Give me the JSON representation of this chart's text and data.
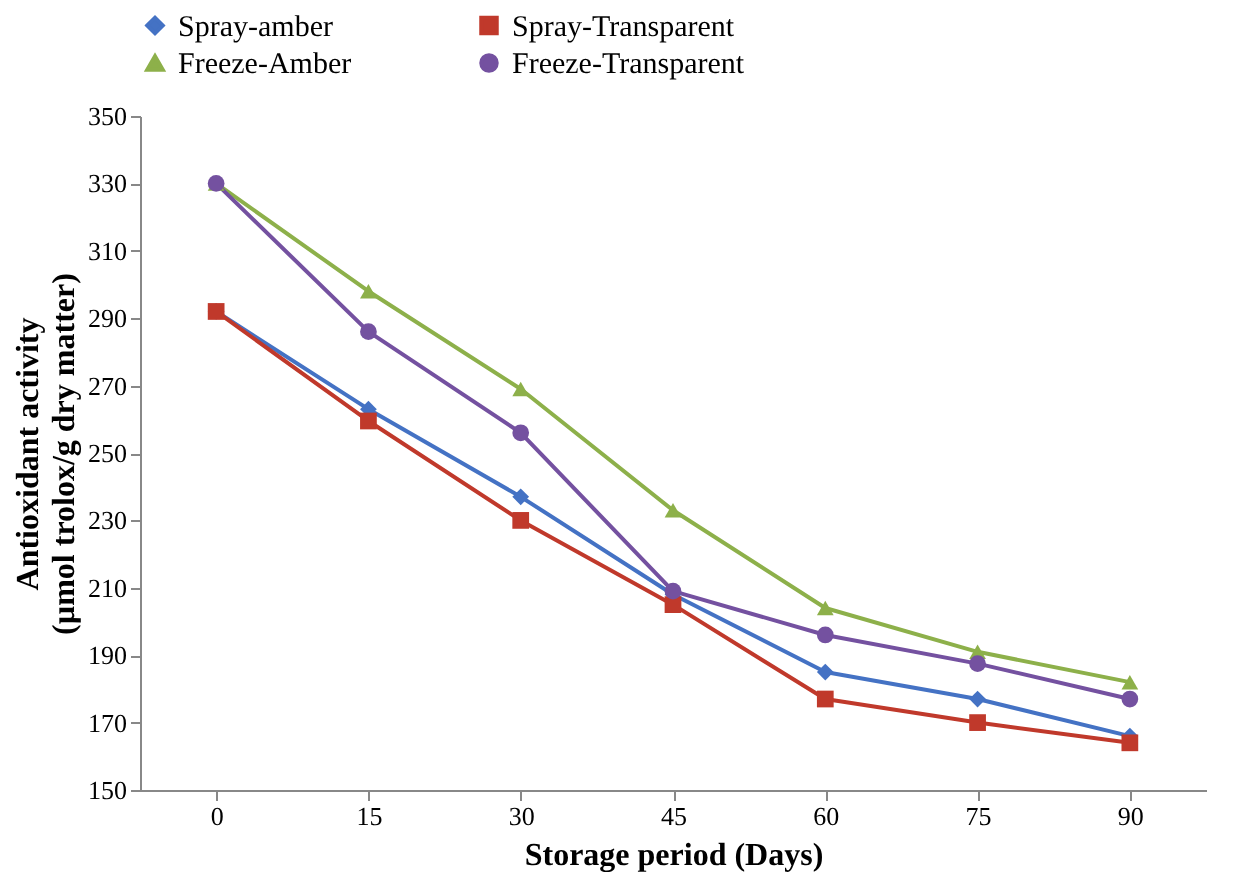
{
  "chart_data": {
    "type": "line",
    "xlabel": "Storage period (Days)",
    "ylabel": "Antioxidant activity\n(µmol trolox/g dry matter)",
    "categories": [
      "0",
      "15",
      "30",
      "45",
      "60",
      "75",
      "90"
    ],
    "ylim": [
      150,
      350
    ],
    "yticks": [
      150,
      170,
      190,
      210,
      230,
      250,
      270,
      290,
      310,
      330,
      350
    ],
    "grid": false,
    "legend": "top",
    "line_style": "solid",
    "series": [
      {
        "name": "Spray-amber",
        "color": "#4472c4",
        "marker": "diamond",
        "values": [
          292,
          263,
          237,
          208,
          185,
          177,
          166
        ]
      },
      {
        "name": "Spray-Transparent",
        "color": "#c0392b",
        "marker": "square",
        "values": [
          292,
          259.5,
          230,
          205,
          177,
          170,
          164
        ]
      },
      {
        "name": "Freeze-Amber",
        "color": "#8db04a",
        "marker": "triangle",
        "values": [
          330,
          298,
          269,
          233,
          204,
          191,
          182
        ]
      },
      {
        "name": "Freeze-Transparent",
        "color": "#7451a0",
        "marker": "circle",
        "values": [
          330,
          286,
          256,
          209,
          196,
          187.5,
          177
        ]
      }
    ]
  }
}
